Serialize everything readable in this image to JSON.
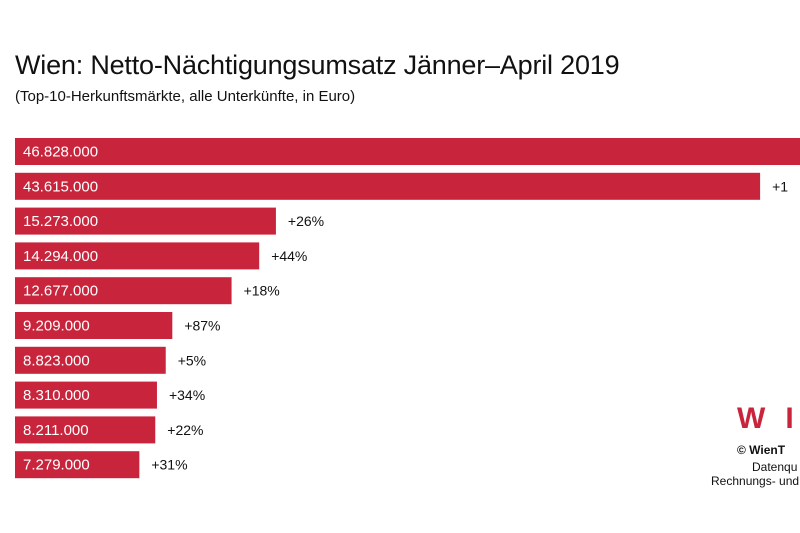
{
  "header": {
    "title": "Wien: Netto-Nächtigungsumsatz Jänner–April 2019",
    "subtitle": "(Top-10-Herkunftsmärkte, alle Unterkünfte, in Euro)"
  },
  "branding": {
    "logo_text": "WI",
    "copyright": "© WienT",
    "source_line1": "Datenqu",
    "source_line2": "Rechnungs- und"
  },
  "colors": {
    "bar": "#c8243c",
    "bar_text": "#ffffff",
    "text": "#111111"
  },
  "chart_data": {
    "type": "bar",
    "orientation": "horizontal",
    "title": "Wien: Netto-Nächtigungsumsatz Jänner–April 2019",
    "subtitle": "(Top-10-Herkunftsmärkte, alle Unterkünfte, in Euro)",
    "values": [
      46828000,
      43615000,
      15273000,
      14294000,
      12677000,
      9209000,
      8823000,
      8310000,
      8211000,
      7279000
    ],
    "value_labels": [
      "46.828.000",
      "43.615.000",
      "15.273.000",
      "14.294.000",
      "12.677.000",
      "9.209.000",
      "8.823.000",
      "8.310.000",
      "8.211.000",
      "7.279.000"
    ],
    "change_labels": [
      "",
      "+1",
      "+26%",
      "+44%",
      "+18%",
      "+87%",
      "+5%",
      "+34%",
      "+22%",
      "+31%"
    ],
    "xlim": [
      0,
      46828000
    ],
    "grid": false,
    "legend": "none"
  }
}
